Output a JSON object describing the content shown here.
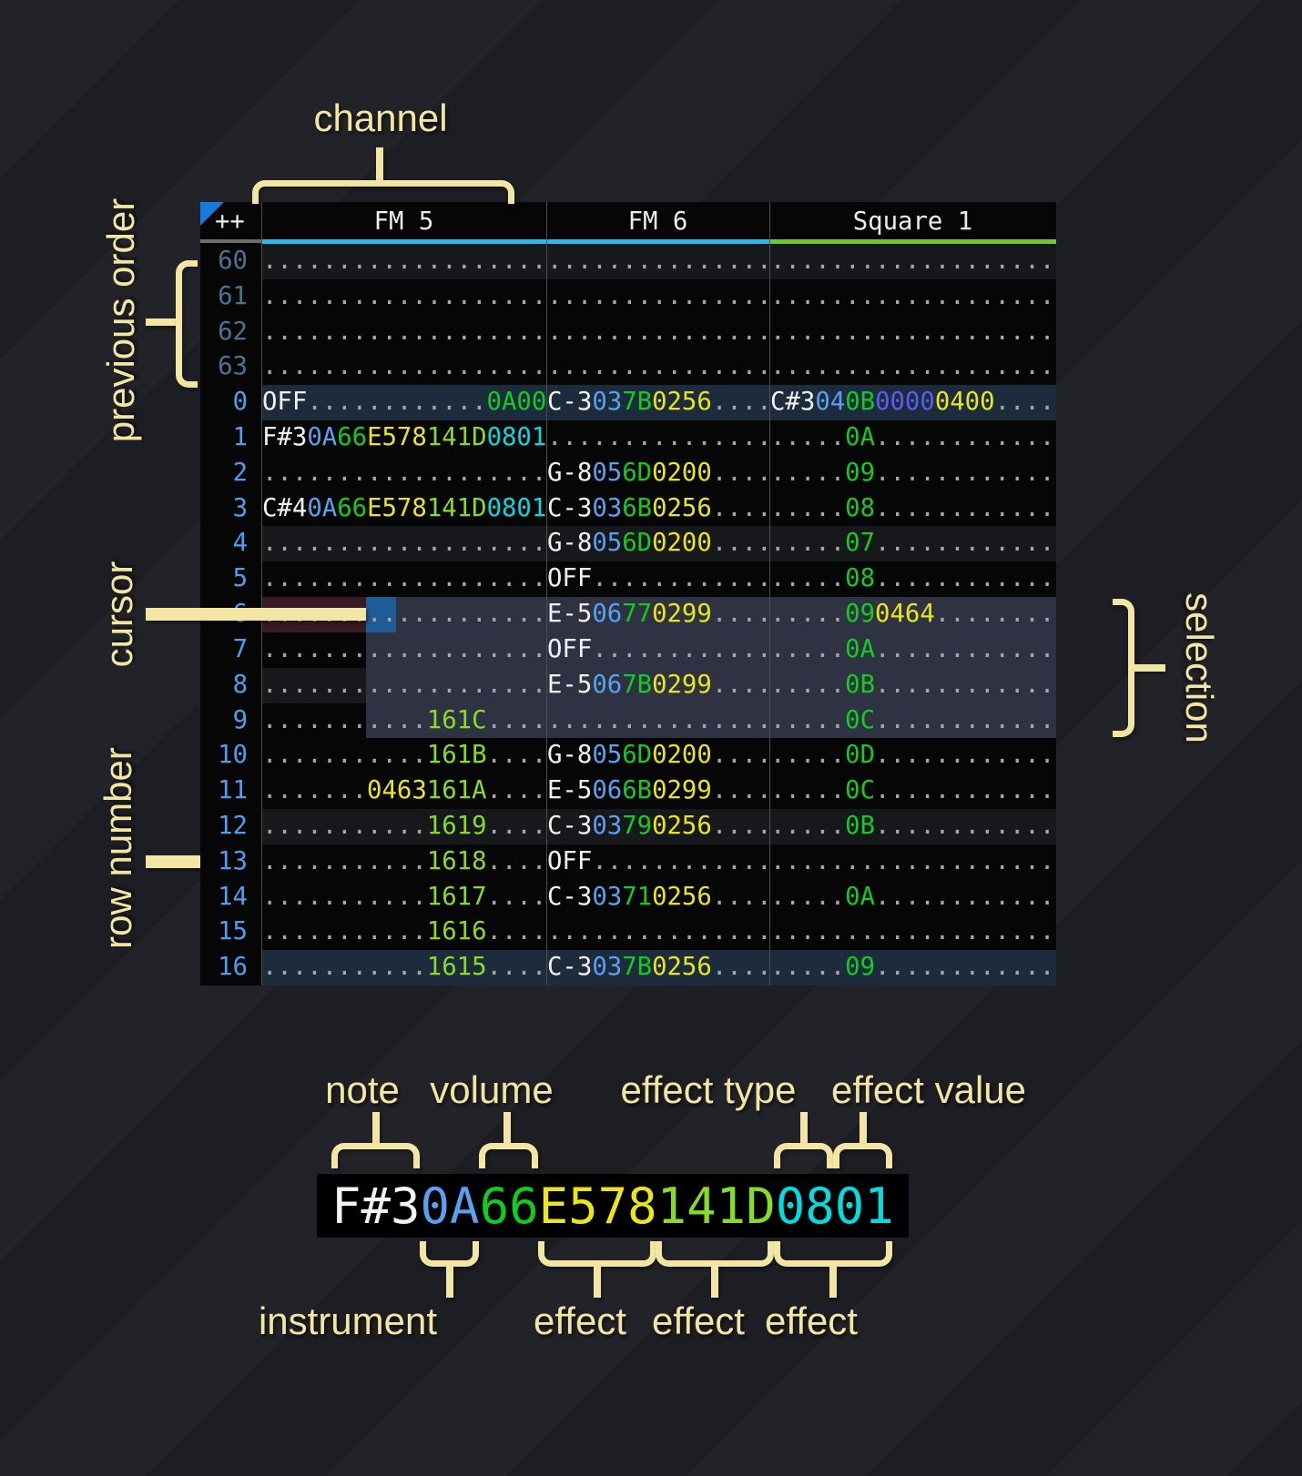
{
  "header": {
    "corner": "++",
    "channels": [
      {
        "name": "FM 5",
        "underline": "fm"
      },
      {
        "name": "FM 6",
        "underline": "fm"
      },
      {
        "name": "Square 1",
        "underline": "square"
      }
    ]
  },
  "pattern": {
    "rows": [
      {
        "num": "60",
        "prev": true,
        "bg": "r4",
        "cells": [
          [
            [
              "...................",
              "d"
            ]
          ],
          [
            [
              "...............",
              "d"
            ]
          ],
          [
            [
              "...................",
              "d"
            ]
          ]
        ]
      },
      {
        "num": "61",
        "prev": true,
        "bg": "",
        "cells": [
          [
            [
              "...................",
              "d"
            ]
          ],
          [
            [
              "...............",
              "d"
            ]
          ],
          [
            [
              "...................",
              "d"
            ]
          ]
        ]
      },
      {
        "num": "62",
        "prev": true,
        "bg": "",
        "cells": [
          [
            [
              "...................",
              "d"
            ]
          ],
          [
            [
              "...............",
              "d"
            ]
          ],
          [
            [
              "...................",
              "d"
            ]
          ]
        ]
      },
      {
        "num": "63",
        "prev": true,
        "bg": "",
        "cells": [
          [
            [
              "...................",
              "d"
            ]
          ],
          [
            [
              "...............",
              "d"
            ]
          ],
          [
            [
              "...................",
              "d"
            ]
          ]
        ]
      },
      {
        "num": "0",
        "prev": false,
        "bg": "order",
        "cells": [
          [
            [
              "OFF",
              "w"
            ],
            [
              "............",
              "d"
            ],
            [
              "0A00",
              "g"
            ]
          ],
          [
            [
              "C-3",
              "w"
            ],
            [
              "03",
              "b"
            ],
            [
              "7B",
              "g"
            ],
            [
              "0256",
              "y"
            ],
            [
              "....",
              "d"
            ]
          ],
          [
            [
              "C#3",
              "w"
            ],
            [
              "04",
              "b"
            ],
            [
              "0B",
              "g"
            ],
            [
              "0000",
              "p"
            ],
            [
              "0400",
              "y"
            ],
            [
              "....",
              "d"
            ]
          ]
        ]
      },
      {
        "num": "1",
        "prev": false,
        "bg": "",
        "cells": [
          [
            [
              "F#3",
              "w"
            ],
            [
              "0A",
              "b"
            ],
            [
              "66",
              "g"
            ],
            [
              "E578",
              "y"
            ],
            [
              "141D",
              "l"
            ],
            [
              "0801",
              "c"
            ]
          ],
          [
            [
              "...............",
              "d"
            ]
          ],
          [
            [
              ".....",
              "d"
            ],
            [
              "0A",
              "g"
            ],
            [
              "............",
              "d"
            ]
          ]
        ]
      },
      {
        "num": "2",
        "prev": false,
        "bg": "",
        "cells": [
          [
            [
              "...................",
              "d"
            ]
          ],
          [
            [
              "G-8",
              "w"
            ],
            [
              "05",
              "b"
            ],
            [
              "6D",
              "g"
            ],
            [
              "0200",
              "y"
            ],
            [
              "....",
              "d"
            ]
          ],
          [
            [
              ".....",
              "d"
            ],
            [
              "09",
              "g"
            ],
            [
              "............",
              "d"
            ]
          ]
        ]
      },
      {
        "num": "3",
        "prev": false,
        "bg": "",
        "cells": [
          [
            [
              "C#4",
              "w"
            ],
            [
              "0A",
              "b"
            ],
            [
              "66",
              "g"
            ],
            [
              "E578",
              "y"
            ],
            [
              "141D",
              "l"
            ],
            [
              "0801",
              "c"
            ]
          ],
          [
            [
              "C-3",
              "w"
            ],
            [
              "03",
              "b"
            ],
            [
              "6B",
              "g"
            ],
            [
              "0256",
              "y"
            ],
            [
              "....",
              "d"
            ]
          ],
          [
            [
              ".....",
              "d"
            ],
            [
              "08",
              "g"
            ],
            [
              "............",
              "d"
            ]
          ]
        ]
      },
      {
        "num": "4",
        "prev": false,
        "bg": "r4",
        "cells": [
          [
            [
              "...................",
              "d"
            ]
          ],
          [
            [
              "G-8",
              "w"
            ],
            [
              "05",
              "b"
            ],
            [
              "6D",
              "g"
            ],
            [
              "0200",
              "y"
            ],
            [
              "....",
              "d"
            ]
          ],
          [
            [
              ".....",
              "d"
            ],
            [
              "07",
              "g"
            ],
            [
              "............",
              "d"
            ]
          ]
        ]
      },
      {
        "num": "5",
        "prev": false,
        "bg": "",
        "cells": [
          [
            [
              "...................",
              "d"
            ]
          ],
          [
            [
              "OFF",
              "w"
            ],
            [
              "............",
              "d"
            ]
          ],
          [
            [
              ".....",
              "d"
            ],
            [
              "08",
              "g"
            ],
            [
              "............",
              "d"
            ]
          ]
        ]
      },
      {
        "num": "6",
        "prev": false,
        "bg": "",
        "cells": [
          [
            [
              "...................",
              "d"
            ]
          ],
          [
            [
              "E-5",
              "w"
            ],
            [
              "06",
              "b"
            ],
            [
              "77",
              "g"
            ],
            [
              "0299",
              "y"
            ],
            [
              "....",
              "d"
            ]
          ],
          [
            [
              ".....",
              "d"
            ],
            [
              "09",
              "g"
            ],
            [
              "0464",
              "y"
            ],
            [
              "........",
              "d"
            ]
          ]
        ]
      },
      {
        "num": "7",
        "prev": false,
        "bg": "",
        "cells": [
          [
            [
              "...................",
              "d"
            ]
          ],
          [
            [
              "OFF",
              "w"
            ],
            [
              "............",
              "d"
            ]
          ],
          [
            [
              ".....",
              "d"
            ],
            [
              "0A",
              "g"
            ],
            [
              "............",
              "d"
            ]
          ]
        ]
      },
      {
        "num": "8",
        "prev": false,
        "bg": "r4",
        "cells": [
          [
            [
              "...................",
              "d"
            ]
          ],
          [
            [
              "E-5",
              "w"
            ],
            [
              "06",
              "b"
            ],
            [
              "7B",
              "g"
            ],
            [
              "0299",
              "y"
            ],
            [
              "....",
              "d"
            ]
          ],
          [
            [
              ".....",
              "d"
            ],
            [
              "0B",
              "g"
            ],
            [
              "............",
              "d"
            ]
          ]
        ]
      },
      {
        "num": "9",
        "prev": false,
        "bg": "",
        "cells": [
          [
            [
              "...........",
              "d"
            ],
            [
              "161C",
              "l"
            ],
            [
              "....",
              "d"
            ]
          ],
          [
            [
              "...............",
              "d"
            ]
          ],
          [
            [
              ".....",
              "d"
            ],
            [
              "0C",
              "g"
            ],
            [
              "............",
              "d"
            ]
          ]
        ]
      },
      {
        "num": "10",
        "prev": false,
        "bg": "",
        "cells": [
          [
            [
              "...........",
              "d"
            ],
            [
              "161B",
              "l"
            ],
            [
              "....",
              "d"
            ]
          ],
          [
            [
              "G-8",
              "w"
            ],
            [
              "05",
              "b"
            ],
            [
              "6D",
              "g"
            ],
            [
              "0200",
              "y"
            ],
            [
              "....",
              "d"
            ]
          ],
          [
            [
              ".....",
              "d"
            ],
            [
              "0D",
              "g"
            ],
            [
              "............",
              "d"
            ]
          ]
        ]
      },
      {
        "num": "11",
        "prev": false,
        "bg": "",
        "cells": [
          [
            [
              ".......",
              "d"
            ],
            [
              "0463",
              "y"
            ],
            [
              "161A",
              "l"
            ],
            [
              "....",
              "d"
            ]
          ],
          [
            [
              "E-5",
              "w"
            ],
            [
              "06",
              "b"
            ],
            [
              "6B",
              "g"
            ],
            [
              "0299",
              "y"
            ],
            [
              "....",
              "d"
            ]
          ],
          [
            [
              ".....",
              "d"
            ],
            [
              "0C",
              "g"
            ],
            [
              "............",
              "d"
            ]
          ]
        ]
      },
      {
        "num": "12",
        "prev": false,
        "bg": "r4",
        "cells": [
          [
            [
              "...........",
              "d"
            ],
            [
              "1619",
              "l"
            ],
            [
              "....",
              "d"
            ]
          ],
          [
            [
              "C-3",
              "w"
            ],
            [
              "03",
              "b"
            ],
            [
              "79",
              "g"
            ],
            [
              "0256",
              "y"
            ],
            [
              "....",
              "d"
            ]
          ],
          [
            [
              ".....",
              "d"
            ],
            [
              "0B",
              "g"
            ],
            [
              "............",
              "d"
            ]
          ]
        ]
      },
      {
        "num": "13",
        "prev": false,
        "bg": "",
        "cells": [
          [
            [
              "...........",
              "d"
            ],
            [
              "1618",
              "l"
            ],
            [
              "....",
              "d"
            ]
          ],
          [
            [
              "OFF",
              "w"
            ],
            [
              "............",
              "d"
            ]
          ],
          [
            [
              "...................",
              "d"
            ]
          ]
        ]
      },
      {
        "num": "14",
        "prev": false,
        "bg": "",
        "cells": [
          [
            [
              "...........",
              "d"
            ],
            [
              "1617",
              "l"
            ],
            [
              "....",
              "d"
            ]
          ],
          [
            [
              "C-3",
              "w"
            ],
            [
              "03",
              "b"
            ],
            [
              "71",
              "g"
            ],
            [
              "0256",
              "y"
            ],
            [
              "....",
              "d"
            ]
          ],
          [
            [
              ".....",
              "d"
            ],
            [
              "0A",
              "g"
            ],
            [
              "............",
              "d"
            ]
          ]
        ]
      },
      {
        "num": "15",
        "prev": false,
        "bg": "",
        "cells": [
          [
            [
              "...........",
              "d"
            ],
            [
              "1616",
              "l"
            ],
            [
              "....",
              "d"
            ]
          ],
          [
            [
              "...............",
              "d"
            ]
          ],
          [
            [
              "...................",
              "d"
            ]
          ]
        ]
      },
      {
        "num": "16",
        "prev": false,
        "bg": "order",
        "cells": [
          [
            [
              "...........",
              "d"
            ],
            [
              "1615",
              "l"
            ],
            [
              "....",
              "d"
            ]
          ],
          [
            [
              "C-3",
              "w"
            ],
            [
              "03",
              "b"
            ],
            [
              "7B",
              "g"
            ],
            [
              "0256",
              "y"
            ],
            [
              "....",
              "d"
            ]
          ],
          [
            [
              ".....",
              "d"
            ],
            [
              "09",
              "g"
            ],
            [
              "............",
              "d"
            ]
          ]
        ]
      }
    ]
  },
  "breakdown": {
    "segments": [
      [
        "F#3",
        "w"
      ],
      [
        "0A",
        "b"
      ],
      [
        "66",
        "g"
      ],
      [
        "E578",
        "y"
      ],
      [
        "141D",
        "l"
      ],
      [
        "0801",
        "c"
      ]
    ]
  },
  "annotations": {
    "channel": "channel",
    "previous_order": "previous order",
    "cursor": "cursor",
    "row_number": "row number",
    "selection": "selection",
    "note": "note",
    "volume": "volume",
    "effect_type": "effect type",
    "effect_value": "effect value",
    "instrument": "instrument",
    "effect_a": "effect",
    "effect_b": "effect",
    "effect_c": "effect"
  },
  "colors": {
    "note": "#f2f2f2",
    "instrument": "#58a1f0",
    "volume": "#12cc1f",
    "effect_yellow": "#eae619",
    "effect_lime": "#87dc28",
    "effect_cyan": "#00dcdf",
    "effect_indigo": "#5c5cee",
    "empty_dots": "#a6a6a6",
    "row_number": "#4f9ef0",
    "row_number_previous": "#4a7393",
    "annotation": "#f3e5a3",
    "cursor_cell": "#1e5c95",
    "cursor_row_tint": "#381b20",
    "selection": "#2f3243",
    "row_highlight": "#17181c",
    "order_row_highlight": "#1d2c3d",
    "fm_underline": "#2bb9e9",
    "square_underline": "#72c72d",
    "corner_triangle": "#1778dd"
  }
}
